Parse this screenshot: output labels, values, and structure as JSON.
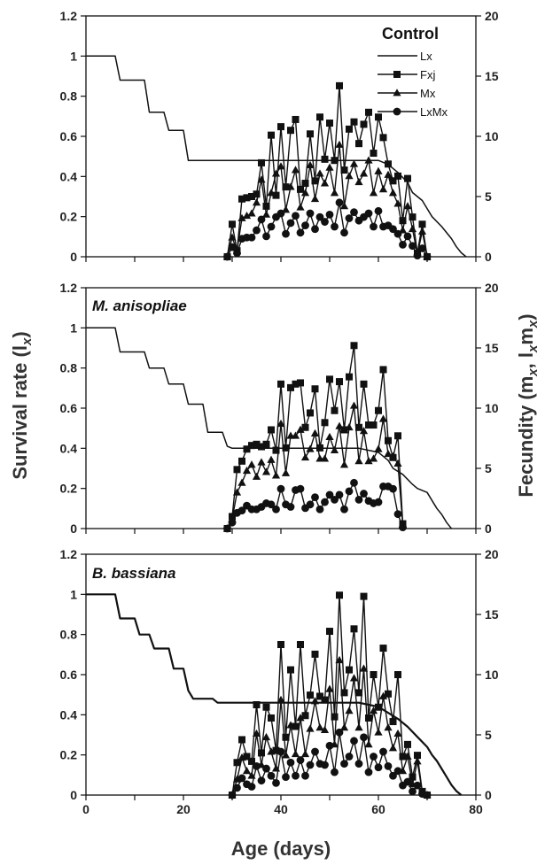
{
  "figure": {
    "ylabel_left": "Survival rate (l",
    "ylabel_left_sub": "x",
    "ylabel_left_end": ")",
    "ylabel_right": "Fecundity (m",
    "ylabel_right_sub1": "x",
    "ylabel_right_mid": ", l",
    "ylabel_right_sub2": "x",
    "ylabel_right_mid2": "m",
    "ylabel_right_sub3": "x",
    "ylabel_right_end": ")",
    "xlabel": "Age (days)",
    "x_ticks": [
      "0",
      "20",
      "40",
      "60",
      "80"
    ],
    "left_ticks": [
      "0",
      "0.2",
      "0.4",
      "0.6",
      "0.8",
      "1",
      "1.2"
    ],
    "right_ticks": [
      "0",
      "5",
      "10",
      "15",
      "20"
    ],
    "legend": {
      "title": "Control",
      "entries": [
        "Lx",
        "Fxj",
        "Mx",
        "LxMx"
      ]
    }
  },
  "chart_data": [
    {
      "type": "line",
      "title": "Control",
      "xlabel": "Age (days)",
      "ylabel": "Survival rate (lx)",
      "ylabel_right": "Fecundity (mx, lxmx)",
      "xlim": [
        0,
        80
      ],
      "ylim": [
        0,
        1.2
      ],
      "ylim_right": [
        0,
        20
      ],
      "legend_position": "top-right",
      "series": [
        {
          "name": "Lx",
          "axis": "left",
          "x": [
            0,
            6,
            7,
            12,
            13,
            16,
            17,
            20,
            21,
            29,
            30,
            50,
            60,
            62,
            64,
            66,
            67,
            69,
            70,
            71,
            73,
            75,
            76,
            77,
            78
          ],
          "y": [
            1,
            1,
            0.88,
            0.88,
            0.72,
            0.72,
            0.63,
            0.63,
            0.48,
            0.48,
            0.48,
            0.48,
            0.48,
            0.46,
            0.42,
            0.37,
            0.32,
            0.28,
            0.24,
            0.2,
            0.15,
            0.09,
            0.05,
            0.02,
            0
          ]
        },
        {
          "name": "Fxj",
          "axis": "right",
          "x": [
            29,
            30,
            31,
            32,
            33,
            34,
            35,
            36,
            37,
            38,
            39,
            40,
            41,
            42,
            43,
            44,
            45,
            46,
            47,
            48,
            49,
            50,
            51,
            52,
            53,
            54,
            55,
            56,
            57,
            58,
            59,
            60,
            61,
            62,
            63,
            64,
            65,
            66,
            67,
            68,
            69,
            70
          ],
          "y": [
            0,
            2.7,
            0.5,
            4.8,
            4.9,
            5,
            5.2,
            7.8,
            4.2,
            10.1,
            5.1,
            10.8,
            5.8,
            10.5,
            11.4,
            5.6,
            6.1,
            10.2,
            6.3,
            11.6,
            8.1,
            11.1,
            8,
            14.2,
            7.2,
            10.6,
            11.2,
            9.4,
            11,
            12,
            8.6,
            11.6,
            9.9,
            7.7,
            6.3,
            6.7,
            3,
            6.5,
            3.3,
            0.3,
            2.7,
            0
          ]
        },
        {
          "name": "Mx",
          "axis": "right",
          "x": [
            29,
            30,
            31,
            32,
            33,
            34,
            35,
            36,
            37,
            38,
            39,
            40,
            41,
            42,
            43,
            44,
            45,
            46,
            47,
            48,
            49,
            50,
            51,
            52,
            53,
            54,
            55,
            56,
            57,
            58,
            59,
            60,
            61,
            62,
            63,
            64,
            65,
            66,
            67,
            68,
            69,
            70
          ],
          "y": [
            0,
            1.6,
            0.5,
            3.2,
            3.4,
            3.6,
            4.5,
            6.4,
            3.5,
            5.3,
            6.9,
            7.5,
            3.9,
            5.8,
            7.2,
            4.1,
            5.3,
            7.6,
            4.8,
            6.9,
            6.1,
            7.4,
            5.3,
            9.3,
            4.2,
            6.7,
            7.7,
            6.2,
            6.9,
            8,
            5.3,
            7.1,
            5.6,
            6.8,
            5.3,
            4.4,
            2.2,
            4.2,
            2.3,
            0.2,
            2.1,
            0
          ]
        },
        {
          "name": "LxMx",
          "axis": "right",
          "x": [
            29,
            30,
            31,
            32,
            33,
            34,
            35,
            36,
            37,
            38,
            39,
            40,
            41,
            42,
            43,
            44,
            45,
            46,
            47,
            48,
            49,
            50,
            51,
            52,
            53,
            54,
            55,
            56,
            57,
            58,
            59,
            60,
            61,
            62,
            63,
            64,
            65,
            66,
            67,
            68,
            69,
            70
          ],
          "y": [
            0,
            0.8,
            0.3,
            1.5,
            1.6,
            1.6,
            2.2,
            3.1,
            1.7,
            2.5,
            3.3,
            3.6,
            1.9,
            2.8,
            3.4,
            2,
            2.6,
            3.6,
            2.3,
            3.3,
            2.9,
            3.5,
            2.5,
            4.5,
            2,
            3.2,
            3.7,
            3,
            3.3,
            3.6,
            2.5,
            3.8,
            2.5,
            2.6,
            2.3,
            1.9,
            1,
            1.7,
            0.9,
            0.1,
            0.7,
            0
          ]
        }
      ]
    },
    {
      "type": "line",
      "title": "M. anisopliae",
      "xlabel": "Age (days)",
      "ylabel": "Survival rate (lx)",
      "ylabel_right": "Fecundity (mx, lxmx)",
      "xlim": [
        0,
        80
      ],
      "ylim": [
        0,
        1.2
      ],
      "ylim_right": [
        0,
        20
      ],
      "series": [
        {
          "name": "Lx",
          "axis": "left",
          "x": [
            0,
            6,
            7,
            12,
            13,
            16,
            17,
            20,
            21,
            24,
            25,
            28,
            29,
            30,
            50,
            56,
            58,
            60,
            62,
            63,
            65,
            67,
            68,
            70,
            71,
            72,
            73,
            74,
            75
          ],
          "y": [
            1,
            1,
            0.88,
            0.88,
            0.8,
            0.8,
            0.72,
            0.72,
            0.62,
            0.62,
            0.48,
            0.48,
            0.41,
            0.4,
            0.4,
            0.4,
            0.39,
            0.38,
            0.34,
            0.3,
            0.27,
            0.22,
            0.2,
            0.18,
            0.14,
            0.1,
            0.07,
            0.03,
            0
          ]
        },
        {
          "name": "Fxj",
          "axis": "right",
          "x": [
            29,
            30,
            31,
            32,
            33,
            34,
            35,
            36,
            37,
            38,
            39,
            40,
            41,
            42,
            43,
            44,
            45,
            46,
            47,
            48,
            49,
            50,
            51,
            52,
            53,
            54,
            55,
            56,
            57,
            58,
            59,
            60,
            61,
            62,
            63,
            64,
            65
          ],
          "y": [
            0,
            1,
            4.9,
            5.6,
            6.6,
            6.9,
            7,
            6.8,
            7,
            8.2,
            6.5,
            12,
            6.7,
            11.7,
            12,
            12.1,
            8.4,
            9.6,
            11.6,
            6.7,
            8.8,
            12.4,
            9.8,
            12.2,
            8.2,
            12.6,
            15.2,
            8.4,
            12,
            8.6,
            8.6,
            9.8,
            13.2,
            7.3,
            5.9,
            7.7,
            0.4
          ]
        },
        {
          "name": "Mx",
          "axis": "right",
          "x": [
            29,
            30,
            31,
            32,
            33,
            34,
            35,
            36,
            37,
            38,
            39,
            40,
            41,
            42,
            43,
            44,
            45,
            46,
            47,
            48,
            49,
            50,
            51,
            52,
            53,
            54,
            55,
            56,
            57,
            58,
            59,
            60,
            61,
            62,
            63,
            64,
            65
          ],
          "y": [
            0,
            0.8,
            3,
            3.8,
            4.8,
            5.3,
            4.3,
            5.5,
            4.7,
            5.7,
            4.4,
            8.7,
            4.6,
            7.7,
            7.7,
            8.2,
            5.9,
            6.6,
            7.9,
            5.8,
            5.8,
            7.6,
            6.5,
            8.5,
            5.3,
            8.4,
            10.2,
            5.6,
            8.1,
            5.6,
            5.8,
            6.6,
            9.1,
            6.2,
            6,
            5.4,
            0.3
          ]
        },
        {
          "name": "LxMx",
          "axis": "right",
          "x": [
            29,
            30,
            31,
            32,
            33,
            34,
            35,
            36,
            37,
            38,
            39,
            40,
            41,
            42,
            43,
            44,
            45,
            46,
            47,
            48,
            49,
            50,
            51,
            52,
            53,
            54,
            55,
            56,
            57,
            58,
            59,
            60,
            61,
            62,
            63,
            64,
            65
          ],
          "y": [
            0,
            0.5,
            1.3,
            1.5,
            1.9,
            1.6,
            1.6,
            1.8,
            2.1,
            2,
            1.6,
            3.3,
            2,
            1.8,
            3.2,
            3.3,
            1.7,
            2,
            2.6,
            1.6,
            2.2,
            2.8,
            2.4,
            2.8,
            1.6,
            3.1,
            3.8,
            2.4,
            2.9,
            2.3,
            2.1,
            2.2,
            3.5,
            3.5,
            3.3,
            1.2,
            0.1
          ]
        }
      ]
    },
    {
      "type": "line",
      "title": "B. bassiana",
      "xlabel": "Age (days)",
      "ylabel": "Survival rate (lx)",
      "ylabel_right": "Fecundity (mx, lxmx)",
      "xlim": [
        0,
        80
      ],
      "ylim": [
        0,
        1.2
      ],
      "ylim_right": [
        0,
        20
      ],
      "series": [
        {
          "name": "Lx",
          "axis": "left",
          "x": [
            0,
            6,
            7,
            10,
            11,
            13,
            14,
            17,
            18,
            20,
            21,
            22,
            23,
            26,
            27,
            50,
            56,
            58,
            60,
            62,
            64,
            66,
            68,
            70,
            71,
            72,
            73,
            74,
            75,
            76,
            77
          ],
          "y": [
            1,
            1,
            0.88,
            0.88,
            0.8,
            0.8,
            0.73,
            0.73,
            0.63,
            0.63,
            0.52,
            0.48,
            0.48,
            0.48,
            0.46,
            0.46,
            0.46,
            0.45,
            0.44,
            0.41,
            0.38,
            0.34,
            0.29,
            0.24,
            0.2,
            0.17,
            0.13,
            0.09,
            0.05,
            0.02,
            0
          ]
        },
        {
          "name": "Fxj",
          "axis": "right",
          "x": [
            30,
            31,
            32,
            33,
            34,
            35,
            36,
            37,
            38,
            39,
            40,
            41,
            42,
            43,
            44,
            45,
            46,
            47,
            48,
            49,
            50,
            51,
            52,
            53,
            54,
            55,
            56,
            57,
            58,
            59,
            60,
            61,
            62,
            63,
            64,
            65,
            66,
            67,
            68,
            69,
            70
          ],
          "y": [
            0,
            2.7,
            4.6,
            3.2,
            2.8,
            7.5,
            3.5,
            7.3,
            6.4,
            3.7,
            12.5,
            4.8,
            10.4,
            5.7,
            12.5,
            6.6,
            8.3,
            11.7,
            8.2,
            7.9,
            13.6,
            6.5,
            16.6,
            8.5,
            10.4,
            13.8,
            8.5,
            16.5,
            6.4,
            10,
            7.3,
            12.2,
            8.4,
            6.1,
            10,
            3.2,
            4.2,
            1.5,
            3.3,
            0.3,
            0
          ]
        },
        {
          "name": "Mx",
          "axis": "right",
          "x": [
            30,
            31,
            32,
            33,
            34,
            35,
            36,
            37,
            38,
            39,
            40,
            41,
            42,
            43,
            44,
            45,
            46,
            47,
            48,
            49,
            50,
            51,
            52,
            53,
            54,
            55,
            56,
            57,
            58,
            59,
            60,
            61,
            62,
            63,
            64,
            65,
            66,
            67,
            68,
            69,
            70
          ],
          "y": [
            0,
            1.3,
            3.1,
            2,
            1.6,
            5.1,
            2.5,
            4.8,
            3.6,
            2.2,
            7.9,
            3.3,
            5.8,
            3.4,
            6.4,
            3.4,
            5.5,
            7.8,
            5.6,
            5.4,
            8.8,
            4.2,
            11.2,
            5.6,
            7,
            9.7,
            5.6,
            10.5,
            4.2,
            7,
            5.2,
            8.2,
            5.6,
            3.9,
            5.1,
            2,
            3.2,
            0.9,
            2.8,
            0.2,
            0
          ]
        },
        {
          "name": "LxMx",
          "axis": "right",
          "x": [
            30,
            31,
            32,
            33,
            34,
            35,
            36,
            37,
            38,
            39,
            40,
            41,
            42,
            43,
            44,
            45,
            46,
            47,
            48,
            49,
            50,
            51,
            52,
            53,
            54,
            55,
            56,
            57,
            58,
            59,
            60,
            61,
            62,
            63,
            64,
            65,
            66,
            67,
            68,
            69,
            70
          ],
          "y": [
            0,
            0.6,
            1.4,
            0.9,
            0.7,
            2.4,
            1.2,
            2.2,
            1.6,
            1,
            3.6,
            1.5,
            2.7,
            1.6,
            2.9,
            1.6,
            2.5,
            3.6,
            2.6,
            2.5,
            4.1,
            1.9,
            5.2,
            2.6,
            3.2,
            4.5,
            2.6,
            4.8,
            1.9,
            3.2,
            2.3,
            3.6,
            2.4,
            1.6,
            2,
            0.8,
            1.1,
            0.3,
            0.8,
            0.1,
            0
          ]
        }
      ]
    }
  ]
}
